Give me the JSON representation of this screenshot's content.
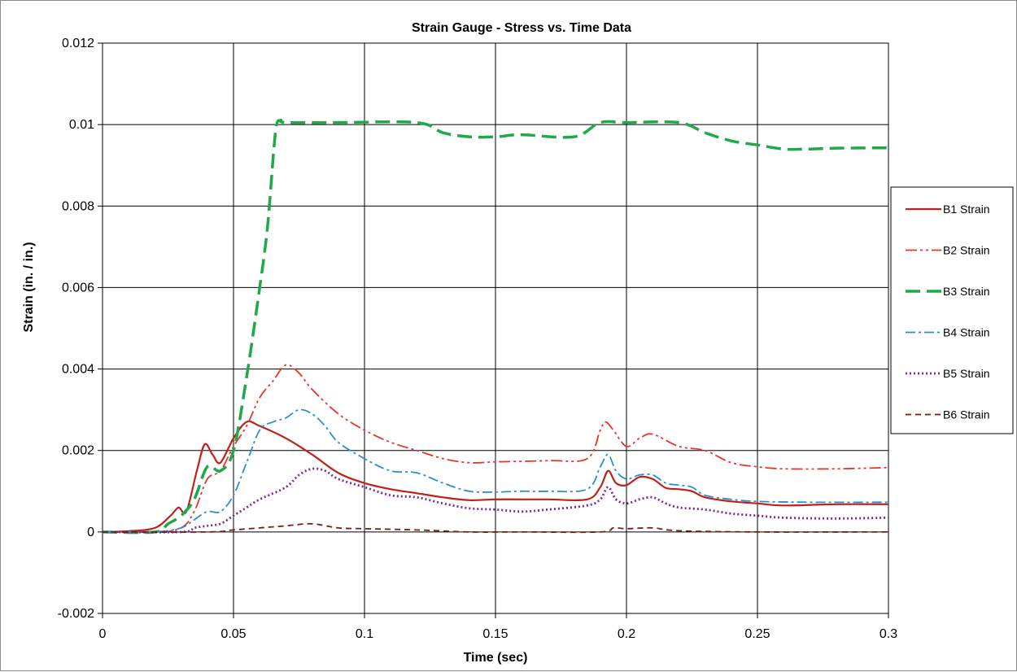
{
  "chart_data": {
    "type": "line",
    "title": "Strain Gauge - Stress vs. Time Data",
    "xlabel": "Time (sec)",
    "ylabel": "Strain  (in. / in.)",
    "xlim": [
      0,
      0.3
    ],
    "ylim": [
      -0.002,
      0.012
    ],
    "x_ticks": [
      0,
      0.05,
      0.1,
      0.15,
      0.2,
      0.25,
      0.3
    ],
    "x_tick_labels": [
      "0",
      "0.05",
      "0.1",
      "0.15",
      "0.2",
      "0.25",
      "0.3"
    ],
    "y_ticks": [
      -0.002,
      0,
      0.002,
      0.004,
      0.006,
      0.008,
      0.01,
      0.012
    ],
    "y_tick_labels": [
      "-0.002",
      "0",
      "0.002",
      "0.004",
      "0.006",
      "0.008",
      "0.01",
      "0.012"
    ],
    "grid": true,
    "legend_position": "right",
    "series": [
      {
        "name": "B1 Strain",
        "color": "#c0201a",
        "dash": "solid",
        "points": [
          [
            0,
            0
          ],
          [
            0.01,
            2e-05
          ],
          [
            0.02,
            0.0001
          ],
          [
            0.026,
            0.0004
          ],
          [
            0.029,
            0.0006
          ],
          [
            0.032,
            0.0005
          ],
          [
            0.036,
            0.0015
          ],
          [
            0.039,
            0.00215
          ],
          [
            0.042,
            0.0019
          ],
          [
            0.045,
            0.0017
          ],
          [
            0.05,
            0.0023
          ],
          [
            0.055,
            0.0027
          ],
          [
            0.06,
            0.0026
          ],
          [
            0.07,
            0.0023
          ],
          [
            0.08,
            0.0019
          ],
          [
            0.09,
            0.00145
          ],
          [
            0.1,
            0.0012
          ],
          [
            0.11,
            0.00105
          ],
          [
            0.12,
            0.00095
          ],
          [
            0.13,
            0.00085
          ],
          [
            0.14,
            0.00078
          ],
          [
            0.15,
            0.0008
          ],
          [
            0.16,
            0.0008
          ],
          [
            0.17,
            0.0008
          ],
          [
            0.185,
            0.0008
          ],
          [
            0.19,
            0.0011
          ],
          [
            0.193,
            0.0015
          ],
          [
            0.196,
            0.0012
          ],
          [
            0.2,
            0.00115
          ],
          [
            0.205,
            0.00135
          ],
          [
            0.21,
            0.0013
          ],
          [
            0.215,
            0.00108
          ],
          [
            0.22,
            0.00105
          ],
          [
            0.225,
            0.001
          ],
          [
            0.23,
            0.00085
          ],
          [
            0.24,
            0.00075
          ],
          [
            0.25,
            0.0007
          ],
          [
            0.26,
            0.00065
          ],
          [
            0.28,
            0.00068
          ],
          [
            0.3,
            0.00068
          ]
        ]
      },
      {
        "name": "B2 Strain",
        "color": "#e8342a",
        "dash": "dash-dot-dot",
        "points": [
          [
            0,
            0
          ],
          [
            0.02,
            0
          ],
          [
            0.03,
            0.0001
          ],
          [
            0.035,
            0.0005
          ],
          [
            0.04,
            0.0013
          ],
          [
            0.045,
            0.0015
          ],
          [
            0.05,
            0.0021
          ],
          [
            0.055,
            0.0026
          ],
          [
            0.06,
            0.0033
          ],
          [
            0.065,
            0.0037
          ],
          [
            0.07,
            0.0041
          ],
          [
            0.075,
            0.0039
          ],
          [
            0.08,
            0.0035
          ],
          [
            0.09,
            0.0029
          ],
          [
            0.1,
            0.0025
          ],
          [
            0.11,
            0.0022
          ],
          [
            0.12,
            0.002
          ],
          [
            0.13,
            0.0018
          ],
          [
            0.14,
            0.0017
          ],
          [
            0.15,
            0.00172
          ],
          [
            0.17,
            0.00175
          ],
          [
            0.185,
            0.0018
          ],
          [
            0.19,
            0.0025
          ],
          [
            0.192,
            0.0027
          ],
          [
            0.195,
            0.0025
          ],
          [
            0.2,
            0.0021
          ],
          [
            0.205,
            0.0023
          ],
          [
            0.21,
            0.0024
          ],
          [
            0.22,
            0.0021
          ],
          [
            0.23,
            0.002
          ],
          [
            0.24,
            0.0017
          ],
          [
            0.25,
            0.0016
          ],
          [
            0.26,
            0.00155
          ],
          [
            0.28,
            0.00155
          ],
          [
            0.3,
            0.00158
          ]
        ]
      },
      {
        "name": "B3 Strain",
        "color": "#20a84a",
        "dash": "long-dash",
        "points": [
          [
            0,
            0
          ],
          [
            0.02,
            0
          ],
          [
            0.025,
            0.0002
          ],
          [
            0.03,
            0.0004
          ],
          [
            0.035,
            0.0008
          ],
          [
            0.04,
            0.0016
          ],
          [
            0.045,
            0.0015
          ],
          [
            0.05,
            0.002
          ],
          [
            0.055,
            0.0038
          ],
          [
            0.06,
            0.006
          ],
          [
            0.063,
            0.0075
          ],
          [
            0.066,
            0.0098
          ],
          [
            0.068,
            0.0101
          ],
          [
            0.07,
            0.01005
          ],
          [
            0.09,
            0.01005
          ],
          [
            0.12,
            0.01005
          ],
          [
            0.13,
            0.0098
          ],
          [
            0.14,
            0.0097
          ],
          [
            0.15,
            0.0097
          ],
          [
            0.16,
            0.00975
          ],
          [
            0.18,
            0.0097
          ],
          [
            0.19,
            0.01005
          ],
          [
            0.2,
            0.01005
          ],
          [
            0.22,
            0.01005
          ],
          [
            0.23,
            0.0098
          ],
          [
            0.24,
            0.0096
          ],
          [
            0.25,
            0.0095
          ],
          [
            0.26,
            0.0094
          ],
          [
            0.27,
            0.0094
          ],
          [
            0.28,
            0.00942
          ],
          [
            0.3,
            0.00943
          ]
        ]
      },
      {
        "name": "B4 Strain",
        "color": "#2a8fd0",
        "dash": "dash-dot",
        "points": [
          [
            0,
            0
          ],
          [
            0.02,
            0
          ],
          [
            0.03,
            0.0001
          ],
          [
            0.035,
            0.0003
          ],
          [
            0.04,
            0.0005
          ],
          [
            0.045,
            0.0005
          ],
          [
            0.05,
            0.0009
          ],
          [
            0.055,
            0.0017
          ],
          [
            0.06,
            0.0025
          ],
          [
            0.065,
            0.0027
          ],
          [
            0.07,
            0.0028
          ],
          [
            0.075,
            0.003
          ],
          [
            0.08,
            0.0029
          ],
          [
            0.085,
            0.0026
          ],
          [
            0.09,
            0.0022
          ],
          [
            0.1,
            0.0018
          ],
          [
            0.11,
            0.0015
          ],
          [
            0.12,
            0.00145
          ],
          [
            0.13,
            0.0012
          ],
          [
            0.14,
            0.001
          ],
          [
            0.15,
            0.00098
          ],
          [
            0.16,
            0.001
          ],
          [
            0.17,
            0.001
          ],
          [
            0.185,
            0.00105
          ],
          [
            0.19,
            0.0016
          ],
          [
            0.193,
            0.0019
          ],
          [
            0.196,
            0.0015
          ],
          [
            0.2,
            0.0013
          ],
          [
            0.205,
            0.0014
          ],
          [
            0.21,
            0.0014
          ],
          [
            0.215,
            0.0012
          ],
          [
            0.22,
            0.00115
          ],
          [
            0.225,
            0.0011
          ],
          [
            0.23,
            0.0009
          ],
          [
            0.24,
            0.0008
          ],
          [
            0.25,
            0.00075
          ],
          [
            0.27,
            0.00073
          ],
          [
            0.3,
            0.00073
          ]
        ]
      },
      {
        "name": "B5 Strain",
        "color": "#7a2a9a",
        "dash": "dotted",
        "points": [
          [
            0,
            0
          ],
          [
            0.03,
            0
          ],
          [
            0.035,
            0.0001
          ],
          [
            0.04,
            0.00015
          ],
          [
            0.045,
            0.0002
          ],
          [
            0.05,
            0.0004
          ],
          [
            0.055,
            0.0006
          ],
          [
            0.06,
            0.0008
          ],
          [
            0.07,
            0.0011
          ],
          [
            0.075,
            0.0014
          ],
          [
            0.08,
            0.00155
          ],
          [
            0.085,
            0.0015
          ],
          [
            0.09,
            0.0013
          ],
          [
            0.1,
            0.0011
          ],
          [
            0.11,
            0.0009
          ],
          [
            0.12,
            0.00085
          ],
          [
            0.13,
            0.0007
          ],
          [
            0.14,
            0.00058
          ],
          [
            0.15,
            0.00055
          ],
          [
            0.16,
            0.0005
          ],
          [
            0.17,
            0.00055
          ],
          [
            0.185,
            0.00065
          ],
          [
            0.19,
            0.0008
          ],
          [
            0.193,
            0.0011
          ],
          [
            0.196,
            0.0008
          ],
          [
            0.2,
            0.0007
          ],
          [
            0.205,
            0.0008
          ],
          [
            0.21,
            0.00085
          ],
          [
            0.215,
            0.0007
          ],
          [
            0.22,
            0.0006
          ],
          [
            0.23,
            0.00055
          ],
          [
            0.24,
            0.00045
          ],
          [
            0.25,
            0.0004
          ],
          [
            0.26,
            0.00035
          ],
          [
            0.28,
            0.00033
          ],
          [
            0.3,
            0.00035
          ]
        ]
      },
      {
        "name": "B6 Strain",
        "color": "#7a1a1a",
        "dash": "short-dash",
        "points": [
          [
            0,
            0
          ],
          [
            0.04,
            0
          ],
          [
            0.05,
            5e-05
          ],
          [
            0.06,
            0.0001
          ],
          [
            0.07,
            0.00015
          ],
          [
            0.08,
            0.0002
          ],
          [
            0.09,
            0.0001
          ],
          [
            0.1,
            8e-05
          ],
          [
            0.12,
            5e-05
          ],
          [
            0.14,
            0
          ],
          [
            0.16,
            0
          ],
          [
            0.19,
            0
          ],
          [
            0.195,
            0.0001
          ],
          [
            0.2,
            8e-05
          ],
          [
            0.21,
            0.0001
          ],
          [
            0.22,
            3e-05
          ],
          [
            0.25,
            0
          ],
          [
            0.3,
            0
          ]
        ]
      }
    ]
  }
}
